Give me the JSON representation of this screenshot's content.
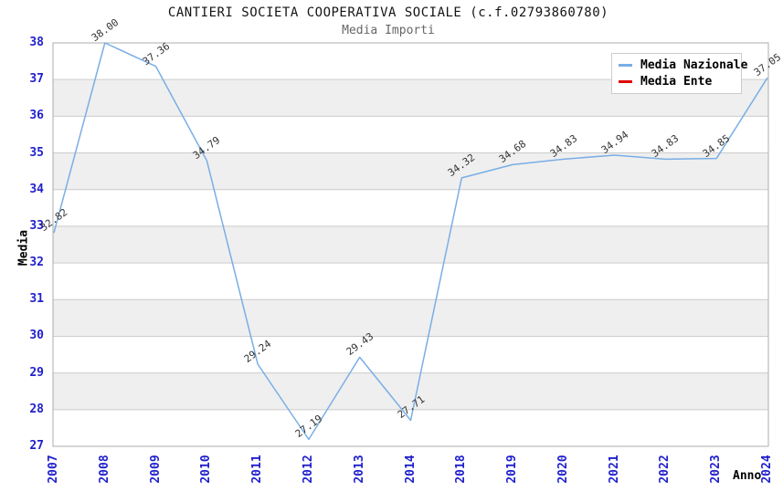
{
  "colors": {
    "background": "#FFFFFF",
    "band_gray": "#EFEFEF",
    "band_white": "#FFFFFF",
    "gridline": "#CCCCCC",
    "plot_border": "#ADADAD",
    "axis_tick_label": "#1F1FCC",
    "title_text": "#141414",
    "subtitle_text": "#666666",
    "data_label_text": "#333333",
    "axis_title_text": "#000000"
  },
  "chart_data": {
    "type": "line",
    "title": "CANTIERI SOCIETA COOPERATIVA SOCIALE (c.f.02793860780)",
    "subtitle": "Media Importi",
    "xlabel": "Anno",
    "ylabel": "Media",
    "categories": [
      "2007",
      "2008",
      "2009",
      "2010",
      "2011",
      "2012",
      "2013",
      "2014",
      "2018",
      "2019",
      "2020",
      "2021",
      "2022",
      "2023",
      "2024"
    ],
    "series": [
      {
        "name": "Media Nazionale",
        "color": "#79AEE6",
        "values": [
          32.82,
          38.0,
          37.36,
          34.79,
          29.24,
          27.19,
          29.43,
          27.71,
          34.32,
          34.68,
          34.83,
          34.94,
          34.83,
          34.85,
          37.05
        ]
      },
      {
        "name": "Media Ente",
        "color": "#E00000",
        "values": []
      }
    ],
    "ylim": [
      27,
      38
    ],
    "y_tick_step": 1,
    "grid": true,
    "alternating_horizontal_bands": true,
    "legend_position": "top-right",
    "data_labels": true,
    "data_label_decimals": 2
  }
}
